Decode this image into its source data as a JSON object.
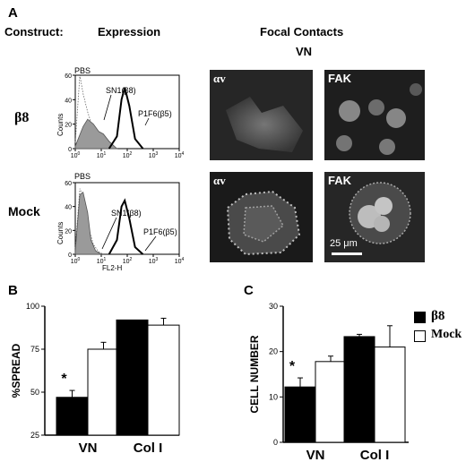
{
  "panel_a": {
    "letter": "A",
    "construct_label": "Construct:",
    "expression_label": "Expression",
    "focal_contacts_label": "Focal Contacts",
    "vn_label": "VN",
    "rows": [
      {
        "label": "β8",
        "pbs": "PBS",
        "sn1": "SN1(β8)",
        "p1f6": "P1F6(β5)",
        "micro_left": "αv",
        "micro_right": "FAK"
      },
      {
        "label": "Mock",
        "pbs": "PBS",
        "sn1": "SN1(β8)",
        "p1f6": "P1F6(β5)",
        "micro_left": "αv",
        "micro_right": "FAK",
        "scale_bar": "25 μm"
      }
    ],
    "hist_axis": {
      "ylabel": "Counts",
      "xlabel": "FL2-H"
    }
  },
  "panel_b": {
    "letter": "B"
  },
  "panel_c": {
    "letter": "C"
  },
  "legend": {
    "b8": "β8",
    "mock": "Mock",
    "b8_color": "#000000",
    "mock_color": "#ffffff"
  },
  "chart_data": [
    {
      "type": "histogram",
      "panel": "A-β8",
      "ylabel": "Counts",
      "xscale": "log",
      "xlim": [
        1,
        10000
      ],
      "ylim": [
        0,
        60
      ],
      "yticks": [
        0,
        20,
        40,
        60
      ],
      "xtick_labels": [
        "10^0",
        "10^1",
        "10^2",
        "10^3",
        "10^4"
      ],
      "series": [
        {
          "name": "PBS",
          "style": "dotted",
          "x": [
            1,
            1.5,
            2,
            3,
            5,
            8,
            12,
            20
          ],
          "y": [
            5,
            60,
            45,
            30,
            15,
            6,
            2,
            0
          ]
        },
        {
          "name": "SN1(β8)",
          "style": "filled-gray",
          "x": [
            1,
            2,
            3,
            5,
            8,
            12,
            20,
            40
          ],
          "y": [
            2,
            18,
            24,
            20,
            14,
            12,
            6,
            0
          ]
        },
        {
          "name": "P1F6(β5)",
          "style": "bold",
          "x": [
            20,
            40,
            60,
            80,
            120,
            200,
            400
          ],
          "y": [
            0,
            10,
            40,
            50,
            35,
            8,
            0
          ]
        }
      ]
    },
    {
      "type": "histogram",
      "panel": "A-Mock",
      "ylabel": "Counts",
      "xlabel": "FL2-H",
      "xscale": "log",
      "xlim": [
        1,
        10000
      ],
      "ylim": [
        0,
        60
      ],
      "yticks": [
        0,
        20,
        40,
        60
      ],
      "xtick_labels": [
        "10^0",
        "10^1",
        "10^2",
        "10^3",
        "10^4"
      ],
      "series": [
        {
          "name": "PBS",
          "style": "dotted",
          "x": [
            1,
            1.5,
            2,
            3,
            5,
            8,
            12
          ],
          "y": [
            5,
            55,
            48,
            25,
            8,
            2,
            0
          ]
        },
        {
          "name": "SN1(β8)",
          "style": "filled-gray",
          "x": [
            1,
            1.5,
            2,
            3,
            4,
            6,
            10
          ],
          "y": [
            3,
            50,
            52,
            35,
            12,
            3,
            0
          ]
        },
        {
          "name": "P1F6(β5)",
          "style": "bold",
          "x": [
            20,
            40,
            60,
            80,
            120,
            200,
            400
          ],
          "y": [
            0,
            12,
            40,
            45,
            30,
            6,
            0
          ]
        }
      ]
    },
    {
      "type": "bar",
      "panel": "B",
      "ylabel": "%SPREAD",
      "categories": [
        "VN",
        "Col I"
      ],
      "ylim": [
        25,
        100
      ],
      "yticks": [
        25,
        50,
        75,
        100
      ],
      "series": [
        {
          "name": "β8",
          "values": [
            47,
            92
          ],
          "errors": [
            4,
            0
          ]
        },
        {
          "name": "Mock",
          "values": [
            75,
            89
          ],
          "errors": [
            4,
            4
          ]
        }
      ],
      "annotations": [
        {
          "text": "*",
          "category": "VN",
          "series": "β8"
        }
      ]
    },
    {
      "type": "bar",
      "panel": "C",
      "ylabel": "CELL NUMBER",
      "categories": [
        "VN",
        "Col I"
      ],
      "ylim": [
        0,
        30
      ],
      "yticks": [
        0,
        10,
        20,
        30
      ],
      "series": [
        {
          "name": "β8",
          "values": [
            12.2,
            23.3
          ],
          "errors": [
            2,
            0.5
          ]
        },
        {
          "name": "Mock",
          "values": [
            17.8,
            21
          ],
          "errors": [
            1.2,
            4.7
          ]
        }
      ],
      "annotations": [
        {
          "text": "*",
          "category": "VN",
          "series": "β8"
        }
      ]
    }
  ]
}
